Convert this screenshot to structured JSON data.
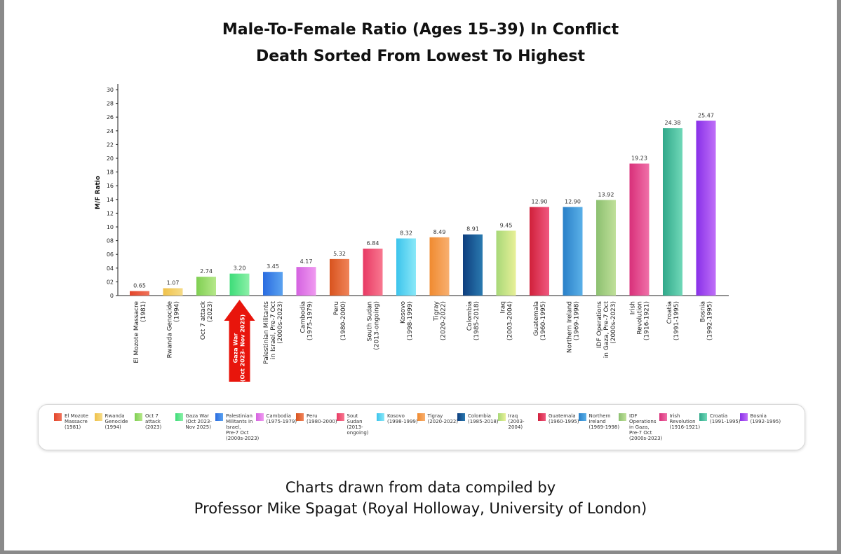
{
  "title_line1": "Male-To-Female Ratio (Ages 15–39) In Conflict",
  "title_line2": "Death Sorted From Lowest To Highest",
  "footer_line1": "Charts drawn from data compiled by",
  "footer_line2": "Professor Mike Spagat (Royal Holloway, University of London)",
  "chart_data": {
    "type": "bar",
    "ylabel": "M/F Ratio",
    "ylim": [
      0,
      30
    ],
    "yticks": [
      "0",
      "02",
      "04",
      "06",
      "08",
      "10",
      "12",
      "14",
      "16",
      "18",
      "20",
      "22",
      "24",
      "26",
      "28",
      "30"
    ],
    "grid": false,
    "legend_position": "bottom",
    "highlight": {
      "category_index": 3,
      "label": "Gaza War (Oct 2023- Nov 2025)",
      "color": "#e8150c"
    },
    "categories": [
      "El Mozote Massacre (1981)",
      "Rwanda Genocide (1994)",
      "Oct 7 attack (2023)",
      "Gaza War (Oct 2023- Nov 2025)",
      "Palestinian Militants in Israel, Pre-7 Oct (2000s-2023)",
      "Cambodia (1975-1979)",
      "Peru (1980-2000)",
      "South Sudan (2013-ongoing)",
      "Kosovo (1998-1999)",
      "Tigray (2020-2022)",
      "Colombia (1985-2018)",
      "Iraq (2003-2004)",
      "Guatemala (1960-1995)",
      "Northern Ireland (1969-1998)",
      "IDF Operations in Gaza, Pre-7 Oct (2000s-2023)",
      "Irish Revolution (1916-1921)",
      "Croatia (1991-1995)",
      "Bosnia (1992-1995)"
    ],
    "tick_labels": [
      [
        "El Mozote Massacre",
        "(1981)"
      ],
      [
        "Rwanda Genocide",
        "(1994)"
      ],
      [
        "Oct 7  attack",
        "(2023)"
      ],
      [],
      [
        "Palestinian  Militants",
        "in Israel, Pre-7 Oct",
        "(2000s-2023)"
      ],
      [
        "Cambodia",
        "(1975-1979)"
      ],
      [
        "Peru",
        "(1980-2000)"
      ],
      [
        "South Sudan",
        "(2013-ongoing)"
      ],
      [
        "Kosovo",
        "(1998-1999)"
      ],
      [
        "Tigray",
        "(2020-2022)"
      ],
      [
        "Colombia",
        "(1985-2018)"
      ],
      [
        "Iraq",
        "(2003-2004)"
      ],
      [
        "Guatemala",
        "(1960-1995)"
      ],
      [
        "Northern Ireland",
        "(1969-1998)"
      ],
      [
        "IDF Operations",
        "in Gaza, Pre-7 Oct",
        "(2000s-2023)"
      ],
      [
        "Irish",
        "Revolution",
        "(1916-1921)"
      ],
      [
        "Croatia",
        "(1991-1995)"
      ],
      [
        "Bosnia",
        "(1992-1995)"
      ]
    ],
    "values": [
      0.65,
      1.07,
      2.74,
      3.2,
      3.45,
      4.17,
      5.32,
      6.84,
      8.32,
      8.49,
      8.91,
      9.45,
      12.9,
      12.9,
      13.92,
      19.23,
      24.38,
      25.47
    ],
    "value_labels": [
      "0.65",
      "1.07",
      "2.74",
      "3.20",
      "3.45",
      "4.17",
      "5.32",
      "6.84",
      "8.32",
      "8.49",
      "8.91",
      "9.45",
      "12.90",
      "12.90",
      "13.92",
      "19.23",
      "24.38",
      "25.47"
    ],
    "colors": [
      [
        "#f0725a",
        "#e3452a"
      ],
      [
        "#f6dc88",
        "#efc14a"
      ],
      [
        "#b6e88a",
        "#7fcf52"
      ],
      [
        "#8cf0a8",
        "#3ddc78"
      ],
      [
        "#5aa2f0",
        "#2a6ce0"
      ],
      [
        "#f09af0",
        "#d462e0"
      ],
      [
        "#f0845a",
        "#d8531e"
      ],
      [
        "#f87890",
        "#e83a64"
      ],
      [
        "#8ae8f8",
        "#3cc4ec"
      ],
      [
        "#f8b070",
        "#f08a30"
      ],
      [
        "#2a7ab0",
        "#0e3e7e"
      ],
      [
        "#e8f098",
        "#a8d878"
      ],
      [
        "#f05880",
        "#d0203a"
      ],
      [
        "#5ab0e8",
        "#2a80c8"
      ],
      [
        "#c0e09a",
        "#8cc070"
      ],
      [
        "#f070a8",
        "#d8307a"
      ],
      [
        "#70d8b8",
        "#30a88a"
      ],
      [
        "#c070f8",
        "#8830e8"
      ]
    ],
    "legend": [
      "El Mozote\nMassacre\n(1981)",
      "Rwanda\nGenocide\n(1994)",
      "Oct 7\nattack\n(2023)",
      "Gaza War\n(Oct 2023-\nNov 2025)",
      "Palestinian\nMilitants in\nIsrael,\nPre-7 Oct\n(2000s-2023)",
      "Cambodia\n(1975-1979)",
      "Peru\n(1980-2000)",
      "Sout\nSudan\n(2013-\nongoing)",
      "Kosovo\n(1998-1999)",
      "Tigray\n(2020-2022)",
      "Colombia\n(1985-2018)",
      "Iraq\n(2003-\n2004)",
      "Guatemala\n(1960-1995)",
      "Northern\nIreland\n(1969-1998)",
      "IDF\nOperations\nin Gaza,\nPre-7 Oct\n(2000s-2023)",
      "Irish\nRevolution\n(1916-1921)",
      "Croatia\n(1991-1995)",
      "Bosnia\n(1992-1995)"
    ]
  }
}
